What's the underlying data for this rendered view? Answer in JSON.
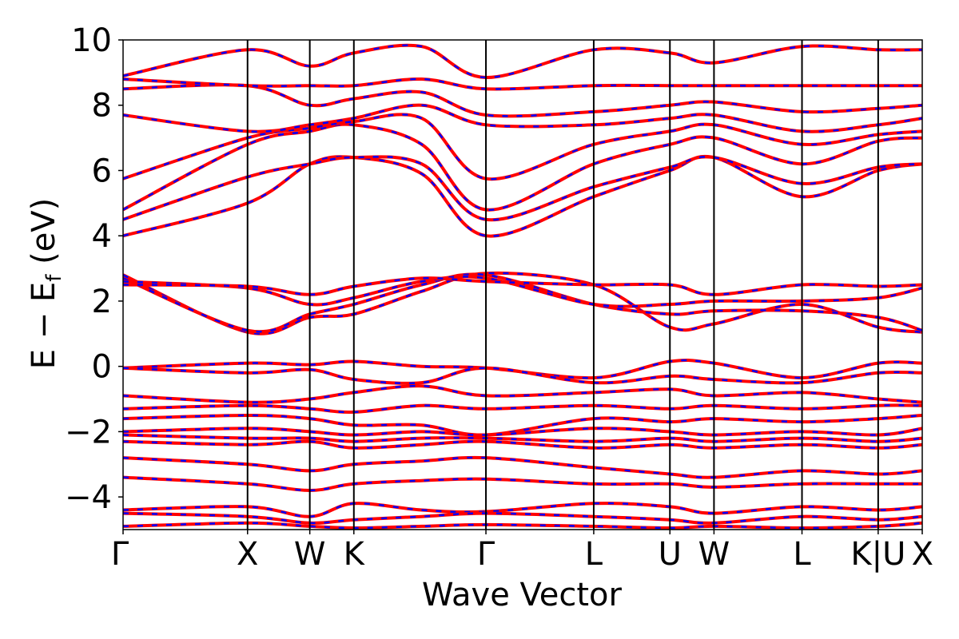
{
  "chart_data": {
    "type": "line",
    "title": "",
    "xlabel": "Wave Vector",
    "ylabel": "E − E",
    "ylabel_sub": "f",
    "ylabel_unit": " (eV)",
    "ylim": [
      -5,
      10
    ],
    "yticks": [
      -4,
      -2,
      0,
      2,
      4,
      6,
      8,
      10
    ],
    "ytick_labels": [
      "−4",
      "−2",
      "0",
      "2",
      "4",
      "6",
      "8",
      "10"
    ],
    "kpoints": [
      {
        "label": "Γ",
        "x": 0.0
      },
      {
        "label": "X",
        "x": 1.0
      },
      {
        "label": "W",
        "x": 1.5
      },
      {
        "label": "K",
        "x": 1.854
      },
      {
        "label": "Γ",
        "x": 2.915
      },
      {
        "label": "L",
        "x": 3.781
      },
      {
        "label": "U",
        "x": 4.393
      },
      {
        "label": "W",
        "x": 4.747
      },
      {
        "label": "L",
        "x": 5.454
      },
      {
        "label": "K|U",
        "x": 6.066
      },
      {
        "label": "X",
        "x": 6.42
      }
    ],
    "grid": false,
    "legend": "none",
    "series_styles": [
      {
        "color": "#ff0000",
        "style": "solid"
      },
      {
        "color": "#0000ff",
        "style": "dashed"
      }
    ],
    "bands": [
      [
        4.0,
        5.0,
        6.2,
        6.4,
        5.9,
        4.0,
        5.2,
        6.0,
        6.4,
        5.2,
        6.0,
        6.2
      ],
      [
        4.5,
        5.8,
        6.2,
        6.4,
        6.2,
        4.5,
        5.5,
        6.1,
        6.4,
        5.6,
        6.1,
        6.2
      ],
      [
        4.8,
        6.8,
        7.2,
        7.4,
        6.8,
        4.8,
        6.2,
        6.8,
        7.0,
        6.2,
        6.9,
        7.0
      ],
      [
        5.75,
        7.0,
        7.3,
        7.5,
        7.6,
        5.75,
        6.8,
        7.2,
        7.4,
        6.8,
        7.1,
        7.2
      ],
      [
        7.7,
        7.2,
        7.4,
        7.6,
        8.0,
        7.4,
        7.4,
        7.6,
        7.7,
        7.2,
        7.4,
        7.6
      ],
      [
        8.5,
        8.6,
        8.0,
        8.2,
        8.4,
        7.7,
        7.8,
        8.0,
        8.1,
        7.8,
        7.9,
        8.0
      ],
      [
        8.8,
        8.6,
        8.6,
        8.6,
        8.8,
        8.5,
        8.6,
        8.6,
        8.6,
        8.6,
        8.6,
        8.6
      ],
      [
        8.9,
        9.7,
        9.2,
        9.6,
        9.8,
        8.85,
        9.7,
        9.6,
        9.3,
        9.8,
        9.7,
        9.7
      ],
      [
        2.8,
        1.05,
        1.5,
        1.6,
        2.3,
        2.85,
        2.5,
        1.2,
        1.3,
        1.9,
        1.2,
        1.05
      ],
      [
        2.7,
        1.1,
        1.6,
        1.9,
        2.5,
        2.8,
        1.9,
        1.6,
        1.7,
        1.7,
        1.5,
        1.1
      ],
      [
        2.6,
        2.4,
        1.9,
        2.1,
        2.6,
        2.7,
        1.9,
        1.9,
        2.0,
        2.0,
        2.1,
        2.4
      ],
      [
        2.5,
        2.45,
        2.2,
        2.45,
        2.7,
        2.6,
        2.5,
        2.5,
        2.2,
        2.5,
        2.45,
        2.5
      ],
      [
        -0.05,
        0.1,
        0.05,
        0.15,
        0.0,
        -0.05,
        -0.35,
        0.15,
        0.1,
        -0.35,
        0.1,
        0.1
      ],
      [
        -0.05,
        -0.2,
        -0.1,
        -0.4,
        -0.5,
        -0.05,
        -0.5,
        -0.3,
        -0.4,
        -0.5,
        -0.2,
        -0.2
      ],
      [
        -0.9,
        -1.1,
        -1.0,
        -0.8,
        -0.6,
        -0.9,
        -0.8,
        -0.7,
        -0.9,
        -0.8,
        -1.0,
        -1.1
      ],
      [
        -1.3,
        -1.2,
        -1.3,
        -1.4,
        -1.2,
        -1.3,
        -1.2,
        -1.3,
        -1.2,
        -1.3,
        -1.2,
        -1.2
      ],
      [
        -1.6,
        -1.5,
        -1.6,
        -1.8,
        -1.8,
        -2.1,
        -1.6,
        -1.7,
        -1.6,
        -1.7,
        -1.6,
        -1.5
      ],
      [
        -2.0,
        -1.9,
        -2.0,
        -2.1,
        -2.0,
        -2.1,
        -1.9,
        -2.0,
        -2.1,
        -2.0,
        -2.1,
        -1.9
      ],
      [
        -2.1,
        -2.2,
        -2.2,
        -2.3,
        -2.2,
        -2.2,
        -2.3,
        -2.2,
        -2.3,
        -2.2,
        -2.3,
        -2.2
      ],
      [
        -2.3,
        -2.4,
        -2.3,
        -2.5,
        -2.4,
        -2.3,
        -2.5,
        -2.4,
        -2.5,
        -2.4,
        -2.5,
        -2.4
      ],
      [
        -2.8,
        -3.0,
        -3.2,
        -3.0,
        -2.9,
        -2.8,
        -3.1,
        -3.3,
        -3.4,
        -3.2,
        -3.3,
        -3.2
      ],
      [
        -3.4,
        -3.6,
        -3.8,
        -3.6,
        -3.5,
        -3.45,
        -3.6,
        -3.6,
        -3.7,
        -3.6,
        -3.6,
        -3.6
      ],
      [
        -4.4,
        -4.3,
        -4.6,
        -4.2,
        -4.4,
        -4.45,
        -4.2,
        -4.3,
        -4.5,
        -4.3,
        -4.4,
        -4.3
      ],
      [
        -4.5,
        -4.6,
        -4.8,
        -4.7,
        -4.6,
        -4.5,
        -4.6,
        -4.7,
        -4.8,
        -4.6,
        -4.7,
        -4.6
      ],
      [
        -4.9,
        -4.8,
        -4.9,
        -4.95,
        -4.9,
        -4.85,
        -4.9,
        -4.95,
        -4.9,
        -4.95,
        -4.9,
        -4.8
      ]
    ],
    "band_x": [
      0.0,
      1.0,
      1.5,
      1.854,
      2.4,
      2.915,
      3.781,
      4.393,
      4.747,
      5.454,
      6.066,
      6.42
    ]
  }
}
